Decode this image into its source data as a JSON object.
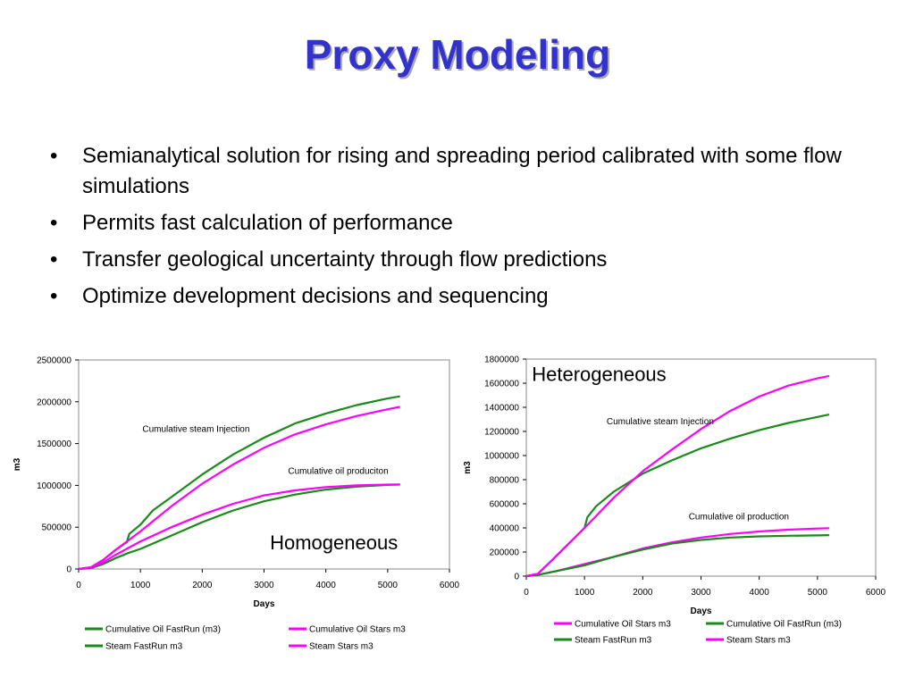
{
  "slide": {
    "title": "Proxy Modeling",
    "bullets": [
      "Semianalytical solution for rising and spreading period calibrated with some flow simulations",
      "Permits fast calculation of performance",
      "Transfer geological uncertainty through flow predictions",
      "Optimize development decisions and sequencing"
    ]
  },
  "colors": {
    "title": "#3333cc",
    "fastrun": "#1a8a1a",
    "stars": "#ff00ff"
  },
  "chart_data": [
    {
      "type": "line",
      "title": "",
      "xlabel": "Days",
      "ylabel": "m3",
      "xlim": [
        0,
        6000
      ],
      "ylim": [
        0,
        2500000
      ],
      "xticks": [
        "0",
        "1000",
        "2000",
        "3000",
        "4000",
        "5000",
        "6000"
      ],
      "yticks": [
        "0",
        "500000",
        "1000000",
        "1500000",
        "2000000",
        "2500000"
      ],
      "grid": false,
      "legend_position": "bottom",
      "annotations": [
        {
          "text": "Cumulative steam Injection",
          "x": 1900,
          "y": 1640000,
          "size": 10,
          "anchor": "middle"
        },
        {
          "text": "Cumulative oil produciton",
          "x": 4200,
          "y": 1140000,
          "size": 10,
          "anchor": "middle"
        },
        {
          "text": "Homogeneous",
          "x": 4130,
          "y": 235000,
          "size": 22,
          "serif": true,
          "anchor": "middle"
        }
      ],
      "series": [
        {
          "name": "Cumulative Oil FastRun (m3)",
          "color": "#1a8a1a",
          "x": [
            0,
            200,
            400,
            600,
            800,
            1000,
            1500,
            2000,
            2500,
            3000,
            3500,
            4000,
            4500,
            5000,
            5200
          ],
          "y": [
            0,
            10000,
            60000,
            130000,
            190000,
            240000,
            400000,
            560000,
            700000,
            810000,
            890000,
            950000,
            985000,
            1005000,
            1010000
          ]
        },
        {
          "name": "Cumulative Oil Stars m3",
          "color": "#ff00ff",
          "x": [
            0,
            200,
            400,
            600,
            800,
            1000,
            1500,
            2000,
            2500,
            3000,
            3500,
            4000,
            4500,
            5000,
            5200
          ],
          "y": [
            0,
            15000,
            80000,
            170000,
            250000,
            330000,
            500000,
            650000,
            780000,
            880000,
            940000,
            980000,
            1000000,
            1010000,
            1012000
          ]
        },
        {
          "name": "Steam FastRun m3",
          "color": "#1a8a1a",
          "x": [
            0,
            200,
            400,
            600,
            780,
            820,
            1000,
            1200,
            1500,
            2000,
            2500,
            3000,
            3500,
            4000,
            4500,
            5000,
            5200
          ],
          "y": [
            0,
            20000,
            110000,
            230000,
            320000,
            420000,
            530000,
            700000,
            860000,
            1130000,
            1370000,
            1570000,
            1740000,
            1860000,
            1960000,
            2040000,
            2065000
          ]
        },
        {
          "name": "Steam Stars m3",
          "color": "#ff00ff",
          "x": [
            0,
            200,
            400,
            600,
            800,
            1000,
            1200,
            1500,
            2000,
            2500,
            3000,
            3500,
            4000,
            4500,
            5000,
            5200
          ],
          "y": [
            0,
            20000,
            110000,
            230000,
            340000,
            450000,
            570000,
            750000,
            1020000,
            1250000,
            1450000,
            1610000,
            1730000,
            1830000,
            1910000,
            1940000
          ]
        }
      ]
    },
    {
      "type": "line",
      "title": "",
      "xlabel": "Days",
      "ylabel": "m3",
      "xlim": [
        0,
        6000
      ],
      "ylim": [
        0,
        1800000
      ],
      "xticks": [
        "0",
        "1000",
        "2000",
        "3000",
        "4000",
        "5000",
        "6000"
      ],
      "yticks": [
        "0",
        "200000",
        "400000",
        "600000",
        "800000",
        "1000000",
        "1200000",
        "1400000",
        "1600000",
        "1800000"
      ],
      "grid": false,
      "legend_position": "bottom",
      "annotations": [
        {
          "text": "Heterogeneous",
          "x": 1250,
          "y": 1620000,
          "size": 22,
          "serif": true,
          "anchor": "middle"
        },
        {
          "text": "Cumulative steam Injection",
          "x": 2300,
          "y": 1260000,
          "size": 10,
          "anchor": "middle"
        },
        {
          "text": "Cumulative oil production",
          "x": 3650,
          "y": 470000,
          "size": 10,
          "anchor": "middle"
        }
      ],
      "series": [
        {
          "name": "Cumulative Oil Stars m3",
          "color": "#ff00ff",
          "x": [
            0,
            200,
            500,
            1000,
            1500,
            2000,
            2500,
            3000,
            3500,
            4000,
            4500,
            5000,
            5200
          ],
          "y": [
            0,
            10000,
            40000,
            100000,
            160000,
            230000,
            280000,
            320000,
            350000,
            370000,
            385000,
            395000,
            398000
          ]
        },
        {
          "name": "Cumulative Oil FastRun (m3)",
          "color": "#1a8a1a",
          "x": [
            0,
            200,
            500,
            1000,
            1500,
            2000,
            2500,
            3000,
            3500,
            4000,
            4500,
            5000,
            5200
          ],
          "y": [
            0,
            10000,
            40000,
            90000,
            160000,
            220000,
            270000,
            300000,
            320000,
            330000,
            335000,
            338000,
            340000
          ]
        },
        {
          "name": "Steam FastRun m3",
          "color": "#1a8a1a",
          "x": [
            0,
            200,
            500,
            1000,
            1050,
            1200,
            1500,
            2000,
            2500,
            3000,
            3500,
            4000,
            4500,
            5000,
            5200
          ],
          "y": [
            0,
            20000,
            160000,
            400000,
            490000,
            580000,
            700000,
            850000,
            960000,
            1060000,
            1140000,
            1210000,
            1270000,
            1320000,
            1340000
          ]
        },
        {
          "name": "Steam Stars m3",
          "color": "#ff00ff",
          "x": [
            0,
            200,
            500,
            1000,
            1500,
            2000,
            2500,
            3000,
            3500,
            4000,
            4500,
            5000,
            5200
          ],
          "y": [
            0,
            20000,
            160000,
            400000,
            650000,
            870000,
            1050000,
            1220000,
            1370000,
            1490000,
            1580000,
            1640000,
            1660000
          ]
        }
      ]
    }
  ]
}
